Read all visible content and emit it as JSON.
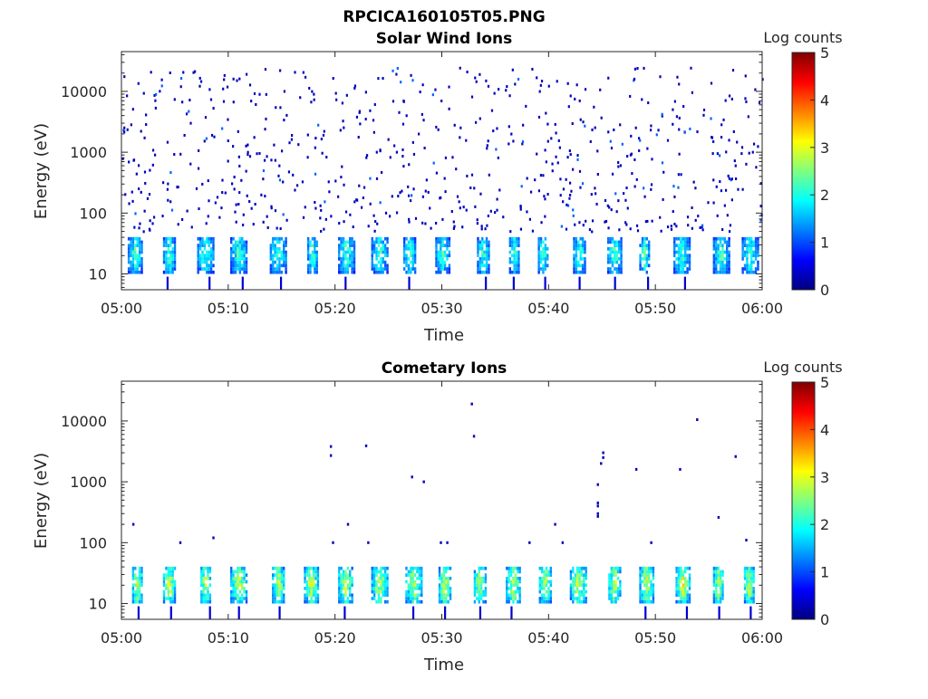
{
  "figure_title": "RPCICA160105T05.PNG",
  "colorbar_ticks": [
    "0",
    "1",
    "2",
    "3",
    "4",
    "5"
  ],
  "colorbar_stops": [
    "#00007f",
    "#0000ff",
    "#007fff",
    "#00ffff",
    "#7fff7f",
    "#ffff00",
    "#ff7f00",
    "#ff0000",
    "#7f0000"
  ],
  "chart_data": [
    {
      "type": "heatmap",
      "title": "Solar Wind Ions",
      "xlabel": "Time",
      "ylabel": "Energy (eV)",
      "colorbar_label": "Log counts",
      "x_ticks": [
        "05:00",
        "05:10",
        "05:20",
        "05:30",
        "05:40",
        "05:50",
        "06:00"
      ],
      "x_range_minutes": [
        0,
        60
      ],
      "y_scale": "log",
      "y_ticks": [
        {
          "value": 10,
          "label": "10"
        },
        {
          "value": 100,
          "label": "100"
        },
        {
          "value": 1000,
          "label": "1000"
        },
        {
          "value": 10000,
          "label": "10000"
        }
      ],
      "y_range": [
        5.5,
        45000
      ],
      "c_range": [
        0,
        5
      ],
      "grid": false,
      "band_centers_minutes": [
        1.3,
        4.5,
        7.9,
        11.0,
        14.7,
        17.9,
        21.1,
        24.2,
        27.0,
        30.1,
        33.9,
        36.8,
        39.5,
        42.9,
        46.2,
        49.0,
        52.5,
        56.2,
        58.9
      ],
      "band_energy_ev": [
        10,
        40
      ],
      "band_peak_log_counts": 2.3,
      "scattered_background_energy_ev": [
        50,
        25000
      ],
      "scattered_background_log_counts": 0.3
    },
    {
      "type": "heatmap",
      "title": "Cometary Ions",
      "xlabel": "Time",
      "ylabel": "Energy (eV)",
      "colorbar_label": "Log counts",
      "x_ticks": [
        "05:00",
        "05:10",
        "05:20",
        "05:30",
        "05:40",
        "05:50",
        "06:00"
      ],
      "x_range_minutes": [
        0,
        60
      ],
      "y_scale": "log",
      "y_ticks": [
        {
          "value": 10,
          "label": "10"
        },
        {
          "value": 100,
          "label": "100"
        },
        {
          "value": 1000,
          "label": "1000"
        },
        {
          "value": 10000,
          "label": "10000"
        }
      ],
      "y_range": [
        5.5,
        45000
      ],
      "c_range": [
        0,
        5
      ],
      "grid": false,
      "band_centers_minutes": [
        1.5,
        4.5,
        7.9,
        11.0,
        14.7,
        17.8,
        21.0,
        24.2,
        27.4,
        30.3,
        33.6,
        36.7,
        39.7,
        42.8,
        46.2,
        49.2,
        52.6,
        55.9,
        58.8
      ],
      "band_energy_ev": [
        10,
        40
      ],
      "band_peak_log_counts": 3.0,
      "isolated_points": [
        {
          "t_min": 1.1,
          "e_ev": 200
        },
        {
          "t_min": 5.5,
          "e_ev": 100
        },
        {
          "t_min": 8.6,
          "e_ev": 120
        },
        {
          "t_min": 19.6,
          "e_ev": 3800
        },
        {
          "t_min": 19.6,
          "e_ev": 2700
        },
        {
          "t_min": 19.8,
          "e_ev": 100
        },
        {
          "t_min": 21.2,
          "e_ev": 200
        },
        {
          "t_min": 22.9,
          "e_ev": 3900
        },
        {
          "t_min": 23.1,
          "e_ev": 100
        },
        {
          "t_min": 27.2,
          "e_ev": 1200
        },
        {
          "t_min": 28.3,
          "e_ev": 1000
        },
        {
          "t_min": 29.9,
          "e_ev": 100
        },
        {
          "t_min": 30.5,
          "e_ev": 100
        },
        {
          "t_min": 32.8,
          "e_ev": 19000
        },
        {
          "t_min": 33.0,
          "e_ev": 5600
        },
        {
          "t_min": 38.2,
          "e_ev": 100
        },
        {
          "t_min": 40.6,
          "e_ev": 200
        },
        {
          "t_min": 41.3,
          "e_ev": 100
        },
        {
          "t_min": 44.6,
          "e_ev": 900
        },
        {
          "t_min": 44.6,
          "e_ev": 450
        },
        {
          "t_min": 44.6,
          "e_ev": 400
        },
        {
          "t_min": 44.6,
          "e_ev": 300
        },
        {
          "t_min": 44.6,
          "e_ev": 270
        },
        {
          "t_min": 45.1,
          "e_ev": 3000
        },
        {
          "t_min": 45.1,
          "e_ev": 2500
        },
        {
          "t_min": 44.9,
          "e_ev": 2000
        },
        {
          "t_min": 48.2,
          "e_ev": 1600
        },
        {
          "t_min": 49.6,
          "e_ev": 100
        },
        {
          "t_min": 52.3,
          "e_ev": 1600
        },
        {
          "t_min": 53.9,
          "e_ev": 10500
        },
        {
          "t_min": 55.9,
          "e_ev": 260
        },
        {
          "t_min": 57.5,
          "e_ev": 2600
        },
        {
          "t_min": 58.5,
          "e_ev": 110
        }
      ]
    }
  ]
}
